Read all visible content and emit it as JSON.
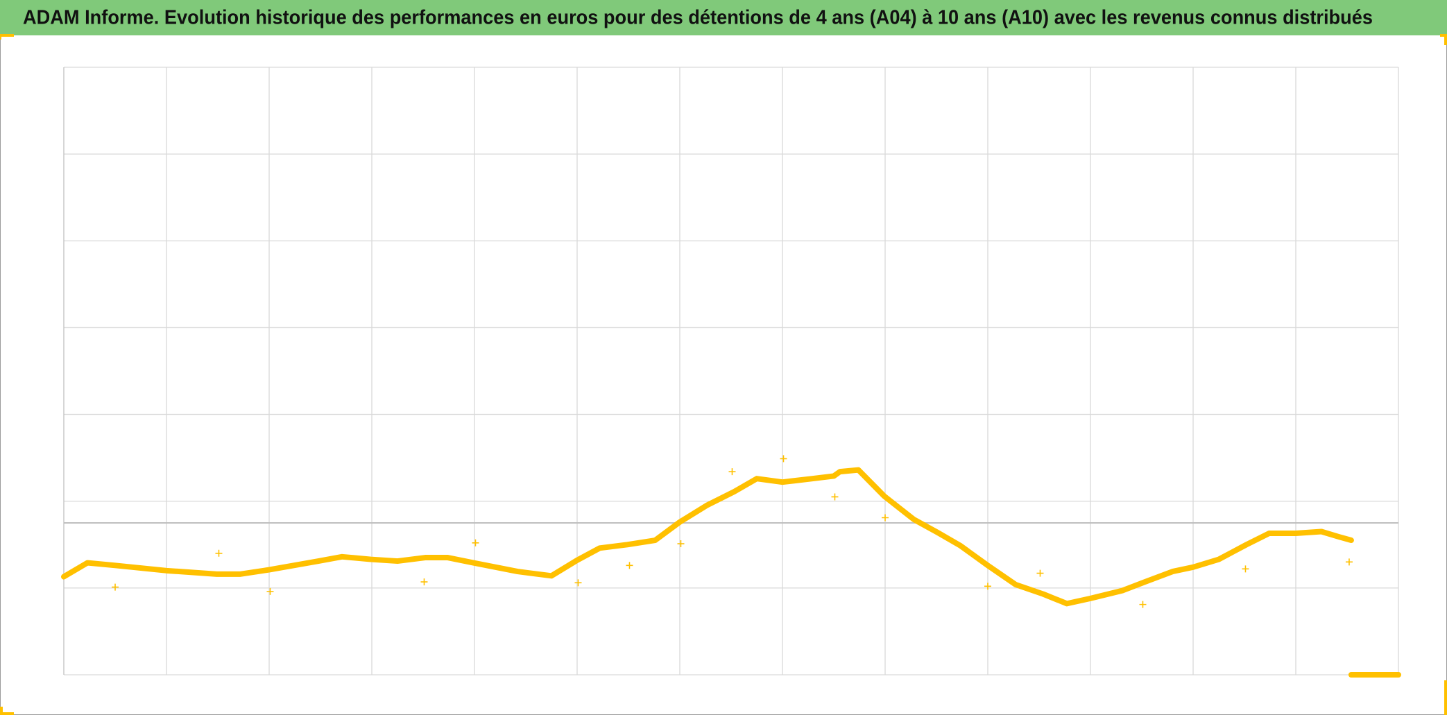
{
  "chart_data": {
    "type": "line",
    "title": "ADAM Informe. Evolution historique des performances en euros pour des détentions de 4 ans (A04) à 10 ans (A10) avec les revenus connus distribués",
    "xlim": [
      0,
      13
    ],
    "xticks": [
      0,
      1,
      2,
      3,
      4,
      5,
      6,
      7,
      8,
      9,
      10,
      11,
      12,
      13
    ],
    "ylim": [
      0,
      7
    ],
    "yticks": [
      0,
      1,
      2,
      3,
      4,
      5,
      6,
      7
    ],
    "reference_line": 1.75,
    "grid": true,
    "series": [
      {
        "color": "#ffc000",
        "style": "line",
        "x": [
          0,
          0.23,
          0.5,
          1.0,
          1.49,
          1.72,
          2.0,
          2.48,
          2.71,
          2.99,
          3.25,
          3.52,
          3.74,
          3.99,
          4.42,
          4.75,
          5.0,
          5.22,
          5.49,
          5.76,
          6.0,
          6.26,
          6.53,
          6.75,
          7.0,
          7.29,
          7.5,
          7.56,
          7.74,
          7.99,
          8.28,
          8.51,
          8.73,
          9.0,
          9.27,
          9.54,
          9.77,
          10.0,
          10.31,
          10.53,
          10.8,
          11.0,
          11.25,
          11.52,
          11.74,
          12.0,
          12.25,
          12.42,
          12.54
        ],
        "values": [
          1.13,
          1.29,
          1.26,
          1.2,
          1.16,
          1.16,
          1.21,
          1.31,
          1.36,
          1.33,
          1.31,
          1.35,
          1.35,
          1.29,
          1.19,
          1.14,
          1.32,
          1.46,
          1.5,
          1.55,
          1.76,
          1.95,
          2.11,
          2.26,
          2.22,
          2.26,
          2.29,
          2.34,
          2.36,
          2.06,
          1.79,
          1.64,
          1.49,
          1.26,
          1.04,
          0.93,
          0.82,
          0.88,
          0.97,
          1.07,
          1.19,
          1.24,
          1.33,
          1.5,
          1.63,
          1.63,
          1.65,
          1.59,
          1.55
        ]
      },
      {
        "color": "#ffc000",
        "style": "markers",
        "x": [
          0.5,
          1.51,
          2.01,
          3.51,
          4.01,
          5.01,
          5.51,
          6.01,
          6.51,
          7.01,
          7.51,
          8.0,
          9.0,
          9.51,
          10.51,
          11.51,
          12.52
        ],
        "values": [
          1.01,
          1.4,
          0.96,
          1.07,
          1.52,
          1.06,
          1.26,
          1.51,
          2.34,
          2.49,
          2.05,
          1.81,
          1.02,
          1.17,
          0.81,
          1.22,
          1.3
        ]
      },
      {
        "color": "#ffc000",
        "style": "line",
        "x": [
          12.54,
          13
        ],
        "values": [
          0,
          0
        ]
      }
    ]
  }
}
